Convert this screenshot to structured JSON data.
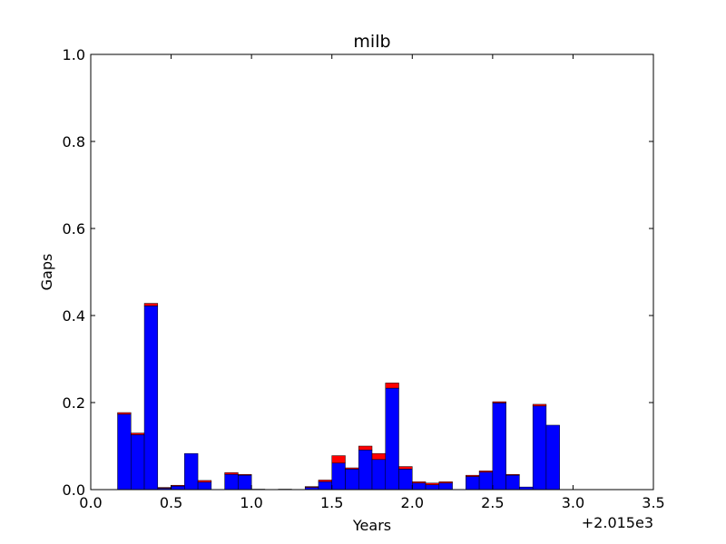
{
  "chart_data": {
    "type": "bar",
    "title": "milb",
    "xlabel": "Years",
    "ylabel": "Gaps",
    "x_offset_label": "+2.015e3",
    "xlim": [
      0.0,
      3.5
    ],
    "ylim": [
      0.0,
      1.0
    ],
    "bin_width": 0.0833,
    "x_ticks": [
      "0.0",
      "0.5",
      "1.0",
      "1.5",
      "2.0",
      "2.5",
      "3.0",
      "3.5"
    ],
    "y_ticks": [
      "0.0",
      "0.2",
      "0.4",
      "0.6",
      "0.8",
      "1.0"
    ],
    "grid": false,
    "stacked": true,
    "colors": {
      "base": "#0000ff",
      "top": "#ff0000"
    },
    "x": [
      0.1667,
      0.25,
      0.3333,
      0.4167,
      0.5,
      0.5833,
      0.6667,
      0.75,
      0.8333,
      0.9167,
      1.0,
      1.0833,
      1.1667,
      1.25,
      1.3333,
      1.4167,
      1.5,
      1.5833,
      1.6667,
      1.75,
      1.8333,
      1.9167,
      2.0,
      2.0833,
      2.1667,
      2.25,
      2.3333,
      2.4167,
      2.5,
      2.5833,
      2.6667,
      2.75,
      2.8333
    ],
    "series": [
      {
        "values": [
          0.173,
          0.126,
          0.422,
          0.003,
          0.008,
          0.083,
          0.017,
          0.0,
          0.035,
          0.033,
          0.001,
          0.0,
          0.001,
          0.0,
          0.005,
          0.018,
          0.061,
          0.047,
          0.091,
          0.069,
          0.233,
          0.047,
          0.015,
          0.011,
          0.015,
          0.0,
          0.03,
          0.04,
          0.199,
          0.033,
          0.006,
          0.192,
          0.148
        ]
      },
      {
        "values": [
          0.004,
          0.004,
          0.006,
          0.002,
          0.002,
          0.0,
          0.004,
          0.0,
          0.004,
          0.002,
          0.0,
          0.0,
          0.0,
          0.0,
          0.002,
          0.004,
          0.017,
          0.003,
          0.009,
          0.014,
          0.012,
          0.006,
          0.003,
          0.004,
          0.003,
          0.0,
          0.003,
          0.003,
          0.003,
          0.002,
          0.0,
          0.004,
          0.0
        ]
      }
    ]
  }
}
